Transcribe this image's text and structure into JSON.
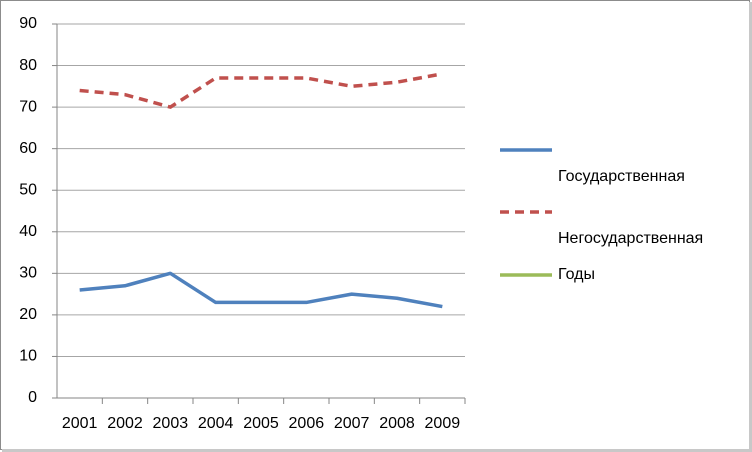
{
  "chart_data": {
    "type": "line",
    "categories": [
      "2001",
      "2002",
      "2003",
      "2004",
      "2005",
      "2006",
      "2007",
      "2008",
      "2009"
    ],
    "series": [
      {
        "name": "Государственная",
        "color": "#4f81bd",
        "dash": "solid",
        "values": [
          26,
          27,
          30,
          23,
          23,
          23,
          25,
          24,
          22
        ]
      },
      {
        "name": "Негосударственная",
        "color": "#c0504d",
        "dash": "dashed",
        "values": [
          74,
          73,
          70,
          77,
          77,
          77,
          75,
          76,
          78
        ]
      },
      {
        "name": "Годы",
        "color": "#9bbb59",
        "dash": "solid",
        "values": [
          null,
          null,
          null,
          null,
          null,
          null,
          null,
          null,
          null
        ]
      }
    ],
    "ylim": [
      0,
      90
    ],
    "yticks": [
      0,
      10,
      20,
      30,
      40,
      50,
      60,
      70,
      80,
      90
    ],
    "grid": true,
    "legend": "right"
  }
}
